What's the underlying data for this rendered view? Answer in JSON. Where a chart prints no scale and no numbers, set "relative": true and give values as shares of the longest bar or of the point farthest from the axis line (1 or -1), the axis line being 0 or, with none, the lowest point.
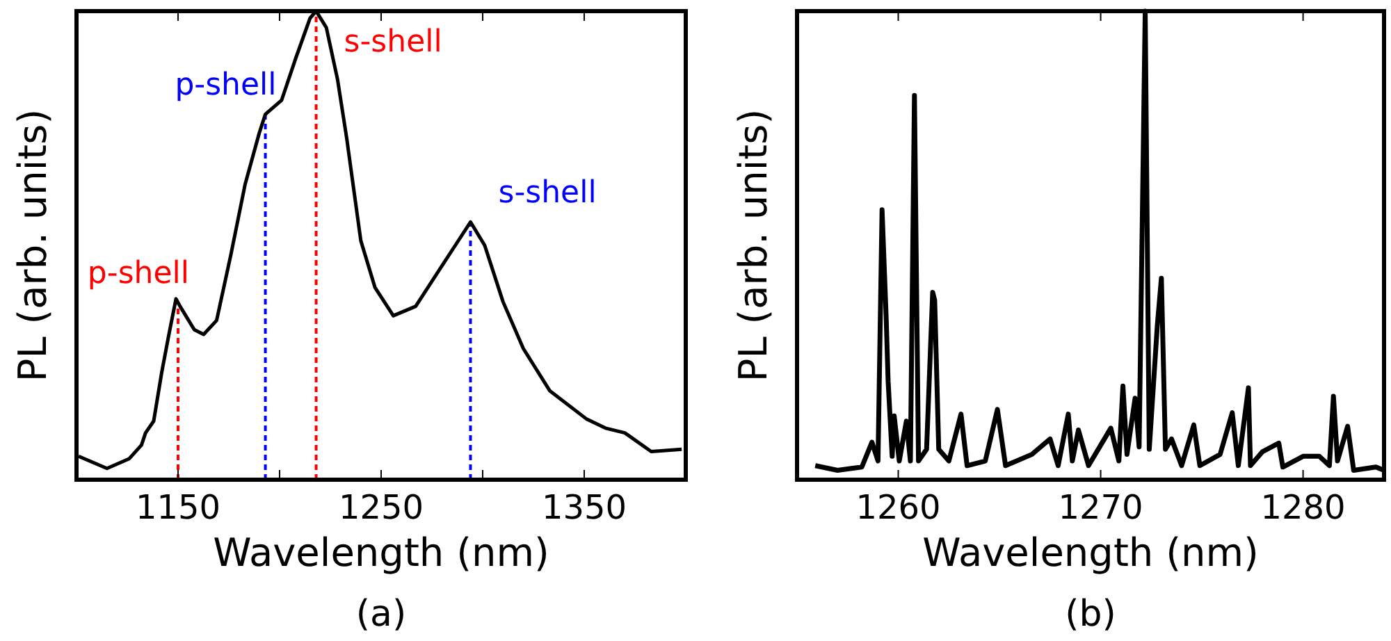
{
  "chart_data": [
    {
      "type": "line",
      "title": "(a)",
      "xlabel": "Wavelength (nm)",
      "ylabel": "PL (arb. units)",
      "relative": true,
      "xlim": [
        1100,
        1400
      ],
      "xticks": [
        1150,
        {
          "value": 1200,
          "label": null
        },
        1250,
        {
          "value": 1300,
          "label": null
        },
        1350
      ],
      "series": [
        {
          "color": "#000000",
          "x": [
            1101,
            1115,
            1126,
            1132,
            1134,
            1138,
            1142,
            1145.5,
            1149,
            1151,
            1158,
            1162.6,
            1169,
            1176,
            1183,
            1190,
            1193,
            1201,
            1208,
            1215,
            1218,
            1223,
            1228.5,
            1233,
            1240,
            1247,
            1256,
            1267,
            1279,
            1288,
            1294,
            1301,
            1310,
            1320,
            1333,
            1351,
            1360.5,
            1370,
            1383,
            1398
          ],
          "values": [
            0.05,
            0.024,
            0.045,
            0.074,
            0.1,
            0.125,
            0.23,
            0.31,
            0.386,
            0.37,
            0.32,
            0.31,
            0.34,
            0.48,
            0.63,
            0.74,
            0.78,
            0.81,
            0.9,
            0.985,
            1.0,
            0.965,
            0.855,
            0.73,
            0.51,
            0.41,
            0.35,
            0.37,
            0.45,
            0.51,
            0.55,
            0.5,
            0.38,
            0.28,
            0.19,
            0.13,
            0.11,
            0.1,
            0.06,
            0.065
          ]
        }
      ],
      "ref_lines": [
        {
          "axis": "x",
          "value": 1150,
          "label": "p-shell",
          "color": "#ff0000",
          "line_style": "dashed"
        },
        {
          "axis": "x",
          "value": 1193,
          "label": "p-shell",
          "color": "#0000ff",
          "line_style": "dashed"
        },
        {
          "axis": "x",
          "value": 1218,
          "label": "s-shell",
          "color": "#ff0000",
          "line_style": "dashed"
        },
        {
          "axis": "x",
          "value": 1294,
          "label": "s-shell",
          "color": "#0000ff",
          "line_style": "dashed"
        }
      ]
    },
    {
      "type": "line",
      "title": "(b)",
      "xlabel": "Wavelength (nm)",
      "ylabel": "PL (arb. units)",
      "relative": true,
      "xlim": [
        1255,
        1284
      ],
      "xticks": [
        1260,
        1270,
        1280
      ],
      "series": [
        {
          "color": "#000000",
          "x": [
            1255.9,
            1257,
            1258.2,
            1258.7,
            1259,
            1259.2,
            1259.4,
            1259.5,
            1259.7,
            1259.8,
            1260.05,
            1260.4,
            1260.6,
            1260.8,
            1261,
            1261.4,
            1261.7,
            1261.8,
            1262,
            1262.5,
            1263.1,
            1263.4,
            1264.3,
            1264.9,
            1265.3,
            1266.6,
            1267.5,
            1267.9,
            1268.4,
            1268.6,
            1268.9,
            1269.4,
            1270.5,
            1270.9,
            1271.1,
            1271.3,
            1271.7,
            1271.9,
            1272.2,
            1272.4,
            1272.8,
            1273,
            1273.2,
            1273.5,
            1274,
            1274.6,
            1274.9,
            1275.9,
            1276.5,
            1276.8,
            1277.3,
            1277.4,
            1278,
            1278.8,
            1279,
            1280,
            1280.8,
            1281.3,
            1281.5,
            1281.7,
            1282.2,
            1282.5,
            1283.6,
            1284
          ],
          "values": [
            0.03,
            0.02,
            0.027,
            0.08,
            0.04,
            0.576,
            0.35,
            0.21,
            0.05,
            0.136,
            0.04,
            0.125,
            0.04,
            0.82,
            0.04,
            0.065,
            0.4,
            0.383,
            0.065,
            0.04,
            0.14,
            0.03,
            0.04,
            0.15,
            0.03,
            0.054,
            0.087,
            0.03,
            0.14,
            0.04,
            0.106,
            0.03,
            0.11,
            0.04,
            0.2,
            0.054,
            0.174,
            0.07,
            1,
            0.065,
            0.33,
            0.43,
            0.065,
            0.087,
            0.03,
            0.117,
            0.03,
            0.054,
            0.143,
            0.03,
            0.196,
            0.03,
            0.06,
            0.078,
            0.027,
            0.05,
            0.05,
            0.03,
            0.178,
            0.04,
            0.114,
            0.02,
            0.027,
            0.02
          ]
        }
      ]
    }
  ]
}
